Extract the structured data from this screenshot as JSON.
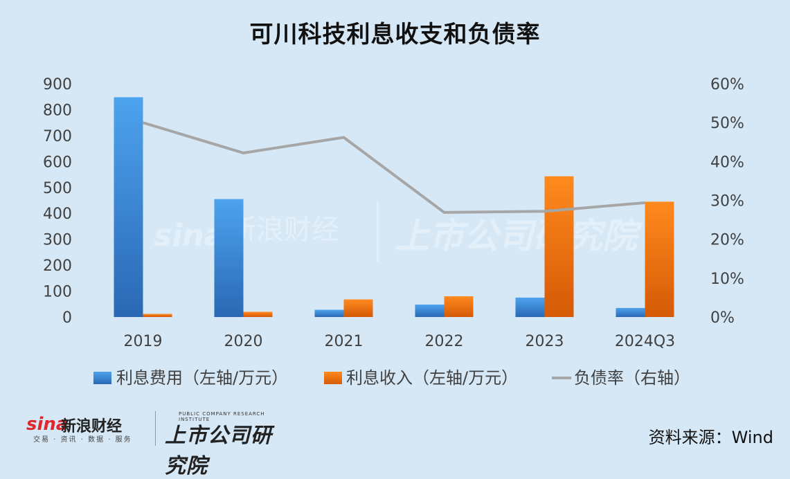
{
  "footer": {
    "brand": {
      "logo_text": "sina",
      "name": "新浪财经",
      "tagline": "交易 · 资讯 · 数据 · 服务"
    },
    "institute": {
      "name_en": "PUBLIC COMPANY RESEARCH INSTITUTE",
      "name_cn": "上市公司研究院"
    },
    "source_text": "资料来源：Wind"
  },
  "colors": {
    "background": "#d6e8f6",
    "expense_bar": "#2f7fd4",
    "income_bar": "#f07a10",
    "debt_line": "#a6a6a6"
  },
  "chart_data": {
    "type": "bar",
    "title": "可川科技利息收支和负债率",
    "categories": [
      "2019",
      "2020",
      "2021",
      "2022",
      "2023",
      "2024Q3"
    ],
    "series": [
      {
        "name": "利息费用（左轴/万元）",
        "type": "bar",
        "axis": "left",
        "values": [
          848,
          455,
          28,
          48,
          75,
          35
        ]
      },
      {
        "name": "利息收入（左轴/万元）",
        "type": "bar",
        "axis": "left",
        "values": [
          12,
          20,
          68,
          80,
          543,
          445
        ]
      },
      {
        "name": "负债率（右轴）",
        "type": "line",
        "axis": "right",
        "values": [
          50.0,
          42.2,
          46.2,
          26.9,
          27.2,
          29.4
        ]
      }
    ],
    "y_left": {
      "min": 0,
      "max": 900,
      "ticks": [
        "0",
        "100",
        "200",
        "300",
        "400",
        "500",
        "600",
        "700",
        "800",
        "900"
      ]
    },
    "y_right": {
      "min": 0,
      "max": 60,
      "ticks": [
        "0%",
        "10%",
        "20%",
        "30%",
        "40%",
        "50%",
        "60%"
      ]
    },
    "grid": false,
    "legend": "bottom"
  }
}
